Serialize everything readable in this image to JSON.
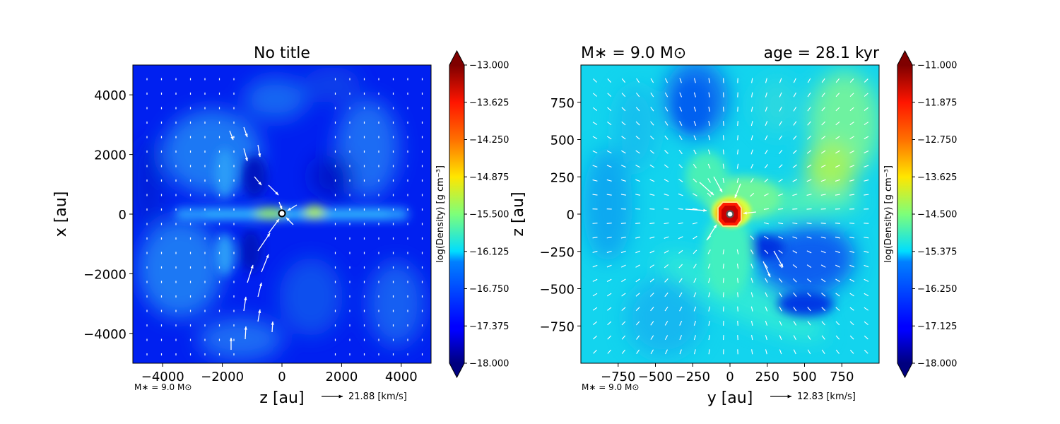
{
  "chart_data": [
    {
      "type": "heatmap",
      "title": "No title",
      "xlabel": "z [au]",
      "ylabel": "x [au]",
      "xlim": [
        -5000,
        5000
      ],
      "ylim": [
        -5000,
        5000
      ],
      "xticks": [
        -4000,
        -2000,
        0,
        2000,
        4000
      ],
      "yticks": [
        -4000,
        -2000,
        0,
        2000,
        4000
      ],
      "xtick_labels": [
        "−4000",
        "−2000",
        "0",
        "2000",
        "4000"
      ],
      "ytick_labels": [
        "−4000",
        "−2000",
        "0",
        "2000",
        "4000"
      ],
      "colormap": "jet",
      "colorbar": {
        "label": "log(Density) [g cm⁻³]",
        "range": [
          -18.0,
          -13.0
        ],
        "ticks": [
          -13.0,
          -13.625,
          -14.25,
          -14.875,
          -15.5,
          -16.125,
          -16.75,
          -17.375,
          -18.0
        ],
        "tick_labels": [
          "−13.000",
          "−13.625",
          "−14.250",
          "−14.875",
          "−15.500",
          "−16.125",
          "−16.750",
          "−17.375",
          "−18.000"
        ]
      },
      "footer_mass": "M∗ = 9.0 M⊙",
      "velocity_key": "21.88 [km/s]"
    },
    {
      "type": "heatmap",
      "title_left": "M∗ = 9.0 M⊙",
      "title_right": "age = 28.1 kyr",
      "xlabel": "y [au]",
      "ylabel": "z [au]",
      "xlim": [
        -1000,
        1000
      ],
      "ylim": [
        -1000,
        1000
      ],
      "xticks": [
        -750,
        -500,
        -250,
        0,
        250,
        500,
        750
      ],
      "yticks": [
        -750,
        -500,
        -250,
        0,
        250,
        500,
        750
      ],
      "xtick_labels": [
        "−750",
        "−500",
        "−250",
        "0",
        "250",
        "500",
        "750"
      ],
      "ytick_labels": [
        "−750",
        "−500",
        "−250",
        "0",
        "250",
        "500",
        "750"
      ],
      "colormap": "jet",
      "colorbar": {
        "label": "log(Density) [g cm⁻³]",
        "range": [
          -18.0,
          -11.0
        ],
        "ticks": [
          -11.0,
          -11.875,
          -12.75,
          -13.625,
          -14.5,
          -15.375,
          -16.25,
          -17.125,
          -18.0
        ],
        "tick_labels": [
          "−11.000",
          "−11.875",
          "−12.750",
          "−13.625",
          "−14.500",
          "−15.375",
          "−16.250",
          "−17.125",
          "−18.000"
        ]
      },
      "footer_mass": "M∗ = 9.0 M⊙",
      "velocity_key": "12.83 [km/s]"
    }
  ]
}
